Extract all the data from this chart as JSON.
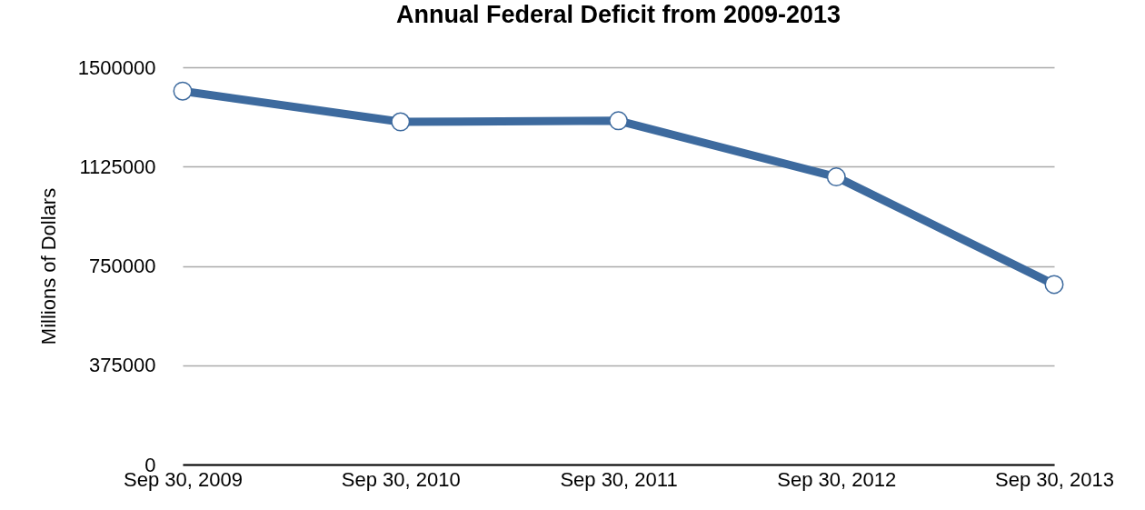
{
  "chart_data": {
    "type": "line",
    "title": "Annual Federal Deficit from 2009-2013",
    "ylabel": "Millions of Dollars",
    "categories": [
      "Sep 30, 2009",
      "Sep 30, 2010",
      "Sep 30, 2011",
      "Sep 30, 2012",
      "Sep 30, 2013"
    ],
    "series": [
      {
        "color": "#3d6a9e",
        "values": [
          1410000,
          1294000,
          1298000,
          1086000,
          680000
        ]
      }
    ],
    "ylim": [
      0,
      1500000
    ],
    "yticks": [
      0,
      375000,
      750000,
      1125000,
      1500000
    ],
    "grid": "y",
    "marker": "circle"
  }
}
